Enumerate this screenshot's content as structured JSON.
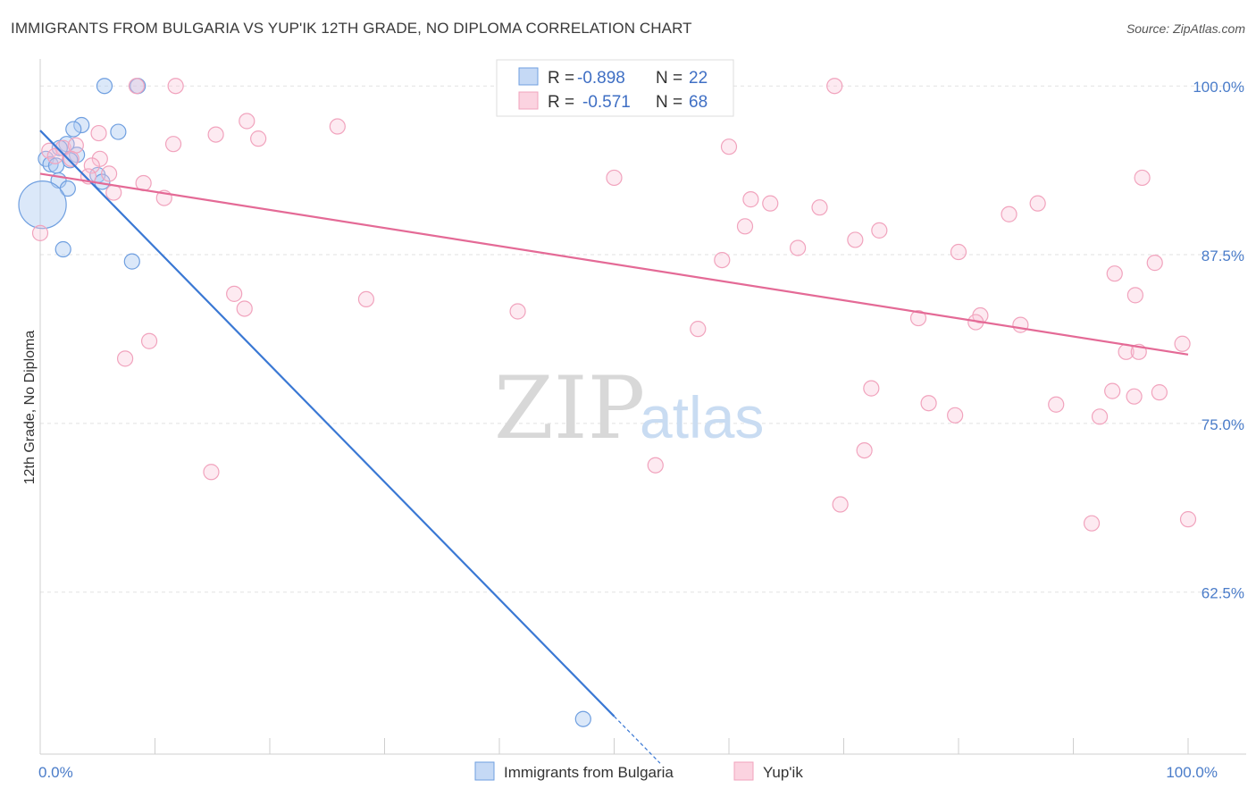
{
  "title": "IMMIGRANTS FROM BULGARIA VS YUP'IK 12TH GRADE, NO DIPLOMA CORRELATION CHART",
  "source": "Source: ZipAtlas.com",
  "watermark": {
    "zip": "ZIP",
    "atlas": "atlas"
  },
  "colors": {
    "blue": "#6f9fe0",
    "blue_line": "#3a78d4",
    "pink": "#f1a3bd",
    "pink_line": "#e46a96",
    "tick_text": "#4a7cc9"
  },
  "stats": [
    {
      "r_label": "R = ",
      "r_value": "-0.898",
      "n_label": "N = ",
      "n_value": "22",
      "color": "#6f9fe0"
    },
    {
      "r_label": "R = ",
      "r_value": "-0.571",
      "n_label": "N = ",
      "n_value": "68",
      "color": "#f1a3bd"
    }
  ],
  "chart_data": {
    "type": "scatter",
    "title": "IMMIGRANTS FROM BULGARIA VS YUP'IK 12TH GRADE, NO DIPLOMA CORRELATION CHART",
    "xlabel": "",
    "ylabel": "12th Grade, No Diploma",
    "xlim": [
      0,
      100
    ],
    "ylim": [
      50.5,
      102
    ],
    "x_ticks": [
      {
        "v": 0,
        "label": "0.0%"
      },
      {
        "v": 100,
        "label": "100.0%"
      }
    ],
    "y_ticks": [
      {
        "v": 100,
        "label": "100.0%"
      },
      {
        "v": 87.5,
        "label": "87.5%"
      },
      {
        "v": 75,
        "label": "75.0%"
      },
      {
        "v": 62.5,
        "label": "62.5%"
      }
    ],
    "grid": true,
    "legend_position": "bottom",
    "series": [
      {
        "name": "Immigrants from Bulgaria",
        "color": "#6f9fe0",
        "trend": {
          "x0": 0,
          "y0": 96.7,
          "x1": 50,
          "y1": 53.3,
          "dash_to_x": 54
        },
        "points": [
          {
            "x": 5.6,
            "y": 100,
            "s": 1
          },
          {
            "x": 8.5,
            "y": 100,
            "s": 1
          },
          {
            "x": 3.6,
            "y": 97.1,
            "s": 1
          },
          {
            "x": 2.9,
            "y": 96.8,
            "s": 1
          },
          {
            "x": 6.8,
            "y": 96.6,
            "s": 1
          },
          {
            "x": 2.3,
            "y": 95.7,
            "s": 1
          },
          {
            "x": 1.7,
            "y": 95.4,
            "s": 1
          },
          {
            "x": 3.2,
            "y": 94.9,
            "s": 1
          },
          {
            "x": 0.5,
            "y": 94.6,
            "s": 1
          },
          {
            "x": 2.6,
            "y": 94.5,
            "s": 1
          },
          {
            "x": 0.9,
            "y": 94.2,
            "s": 1
          },
          {
            "x": 1.4,
            "y": 94.1,
            "s": 1
          },
          {
            "x": 5.0,
            "y": 93.4,
            "s": 1
          },
          {
            "x": 1.6,
            "y": 93.0,
            "s": 1
          },
          {
            "x": 5.4,
            "y": 92.9,
            "s": 1
          },
          {
            "x": 2.4,
            "y": 92.4,
            "s": 1
          },
          {
            "x": 0.2,
            "y": 91.2,
            "s": 2.5
          },
          {
            "x": 2.0,
            "y": 87.9,
            "s": 1
          },
          {
            "x": 8.0,
            "y": 87.0,
            "s": 1
          },
          {
            "x": 47.3,
            "y": 53.1,
            "s": 1
          }
        ]
      },
      {
        "name": "Yup'ik",
        "color": "#f1a3bd",
        "trend": {
          "x0": 0,
          "y0": 93.5,
          "x1": 100,
          "y1": 80.1
        },
        "points": [
          {
            "x": 8.4,
            "y": 100,
            "s": 1
          },
          {
            "x": 11.8,
            "y": 100,
            "s": 1
          },
          {
            "x": 69.2,
            "y": 100,
            "s": 1
          },
          {
            "x": 18.0,
            "y": 97.4,
            "s": 1
          },
          {
            "x": 25.9,
            "y": 97.0,
            "s": 1
          },
          {
            "x": 5.1,
            "y": 96.5,
            "s": 1
          },
          {
            "x": 15.3,
            "y": 96.4,
            "s": 1
          },
          {
            "x": 19.0,
            "y": 96.1,
            "s": 1
          },
          {
            "x": 11.6,
            "y": 95.7,
            "s": 1
          },
          {
            "x": 60.0,
            "y": 95.5,
            "s": 1
          },
          {
            "x": 0.8,
            "y": 95.2,
            "s": 1
          },
          {
            "x": 2.0,
            "y": 95.4,
            "s": 1
          },
          {
            "x": 3.1,
            "y": 95.6,
            "s": 1
          },
          {
            "x": 1.3,
            "y": 94.8,
            "s": 1
          },
          {
            "x": 2.7,
            "y": 94.6,
            "s": 1
          },
          {
            "x": 5.2,
            "y": 94.6,
            "s": 1
          },
          {
            "x": 4.5,
            "y": 94.1,
            "s": 1
          },
          {
            "x": 6.0,
            "y": 93.5,
            "s": 1
          },
          {
            "x": 4.2,
            "y": 93.3,
            "s": 1
          },
          {
            "x": 50.0,
            "y": 93.2,
            "s": 1
          },
          {
            "x": 96.0,
            "y": 93.2,
            "s": 1
          },
          {
            "x": 9.0,
            "y": 92.8,
            "s": 1
          },
          {
            "x": 6.4,
            "y": 92.1,
            "s": 1
          },
          {
            "x": 10.8,
            "y": 91.7,
            "s": 1
          },
          {
            "x": 61.9,
            "y": 91.6,
            "s": 1
          },
          {
            "x": 63.6,
            "y": 91.3,
            "s": 1
          },
          {
            "x": 67.9,
            "y": 91.0,
            "s": 1
          },
          {
            "x": 86.9,
            "y": 91.3,
            "s": 1
          },
          {
            "x": 84.4,
            "y": 90.5,
            "s": 1
          },
          {
            "x": 0.0,
            "y": 89.1,
            "s": 1
          },
          {
            "x": 61.4,
            "y": 89.6,
            "s": 1
          },
          {
            "x": 73.1,
            "y": 89.3,
            "s": 1
          },
          {
            "x": 71.0,
            "y": 88.6,
            "s": 1
          },
          {
            "x": 66.0,
            "y": 88.0,
            "s": 1
          },
          {
            "x": 80.0,
            "y": 87.7,
            "s": 1
          },
          {
            "x": 59.4,
            "y": 87.1,
            "s": 1
          },
          {
            "x": 97.1,
            "y": 86.9,
            "s": 1
          },
          {
            "x": 93.6,
            "y": 86.1,
            "s": 1
          },
          {
            "x": 16.9,
            "y": 84.6,
            "s": 1
          },
          {
            "x": 95.4,
            "y": 84.5,
            "s": 1
          },
          {
            "x": 28.4,
            "y": 84.2,
            "s": 1
          },
          {
            "x": 17.8,
            "y": 83.5,
            "s": 1
          },
          {
            "x": 41.6,
            "y": 83.3,
            "s": 1
          },
          {
            "x": 81.9,
            "y": 83.0,
            "s": 1
          },
          {
            "x": 76.5,
            "y": 82.8,
            "s": 1
          },
          {
            "x": 81.5,
            "y": 82.5,
            "s": 1
          },
          {
            "x": 85.4,
            "y": 82.3,
            "s": 1
          },
          {
            "x": 57.3,
            "y": 82.0,
            "s": 1
          },
          {
            "x": 9.5,
            "y": 81.1,
            "s": 1
          },
          {
            "x": 99.5,
            "y": 80.9,
            "s": 1
          },
          {
            "x": 94.6,
            "y": 80.3,
            "s": 1
          },
          {
            "x": 95.7,
            "y": 80.3,
            "s": 1
          },
          {
            "x": 7.4,
            "y": 79.8,
            "s": 1
          },
          {
            "x": 72.4,
            "y": 77.6,
            "s": 1
          },
          {
            "x": 93.4,
            "y": 77.4,
            "s": 1
          },
          {
            "x": 97.5,
            "y": 77.3,
            "s": 1
          },
          {
            "x": 95.3,
            "y": 77.0,
            "s": 1
          },
          {
            "x": 77.4,
            "y": 76.5,
            "s": 1
          },
          {
            "x": 88.5,
            "y": 76.4,
            "s": 1
          },
          {
            "x": 79.7,
            "y": 75.6,
            "s": 1
          },
          {
            "x": 92.3,
            "y": 75.5,
            "s": 1
          },
          {
            "x": 71.8,
            "y": 73.0,
            "s": 1
          },
          {
            "x": 53.6,
            "y": 71.9,
            "s": 1
          },
          {
            "x": 14.9,
            "y": 71.4,
            "s": 1
          },
          {
            "x": 69.7,
            "y": 69.0,
            "s": 1
          },
          {
            "x": 100.0,
            "y": 67.9,
            "s": 1
          },
          {
            "x": 91.6,
            "y": 67.6,
            "s": 1
          }
        ]
      }
    ]
  }
}
